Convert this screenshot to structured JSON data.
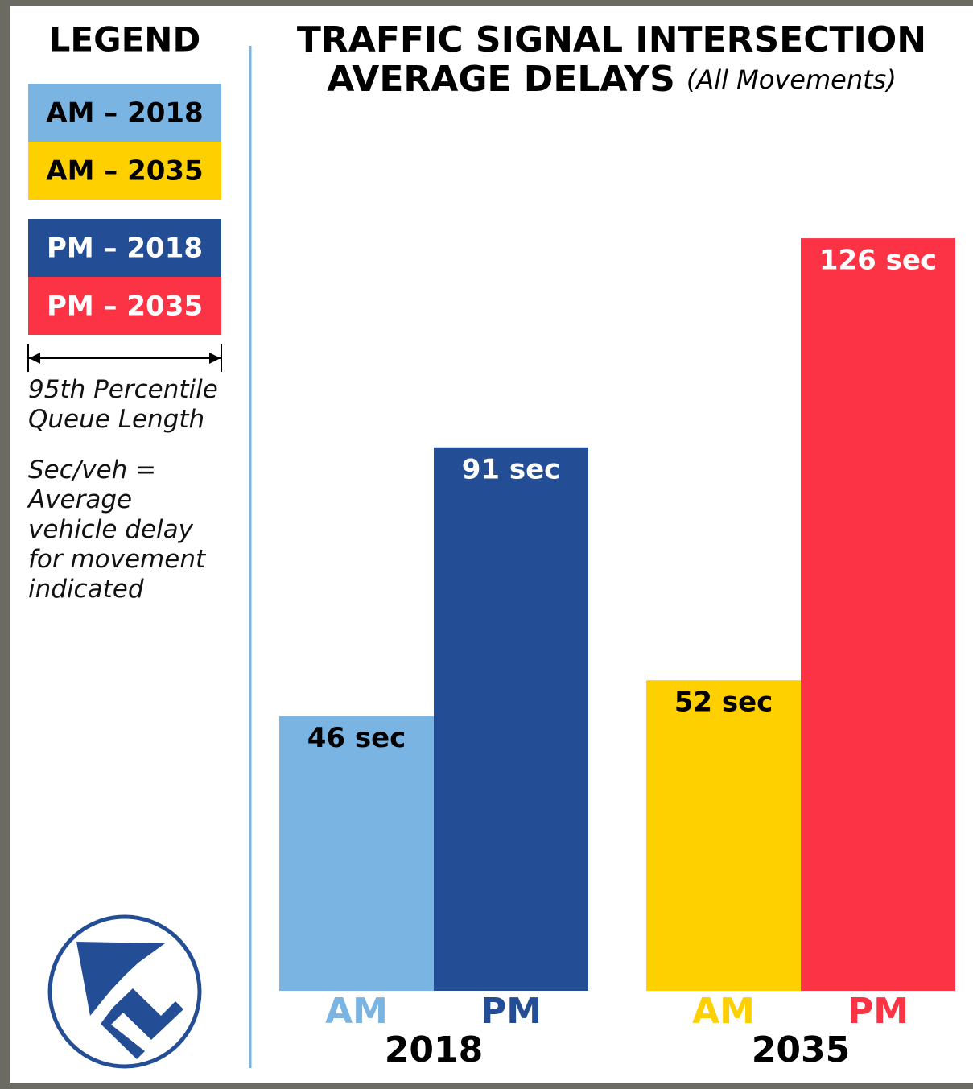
{
  "chart_data": {
    "type": "bar",
    "title": [
      "TRAFFIC SIGNAL INTERSECTION",
      "AVERAGE DELAYS"
    ],
    "subtitle": "(All Movements)",
    "legend_title": "LEGEND",
    "legend": [
      {
        "name": "AM – 2018",
        "color": "#7ab4e2",
        "text_color": "#000000"
      },
      {
        "name": "AM – 2035",
        "color": "#ffd000",
        "text_color": "#000000"
      },
      {
        "name": "PM – 2018",
        "color": "#234e96",
        "text_color": "#ffffff"
      },
      {
        "name": "PM – 2035",
        "color": "#fb3344",
        "text_color": "#ffffff"
      }
    ],
    "notes": [
      "95th Percentile Queue Length",
      "Sec/veh = Average vehicle delay for movement indicated"
    ],
    "categories": [
      "2018",
      "2035"
    ],
    "series": [
      {
        "name": "AM",
        "colors": [
          "#7ab4e2",
          "#ffd000"
        ],
        "label_color": "#000000",
        "values": [
          46,
          52
        ],
        "value_labels": [
          "46 sec",
          "52 sec"
        ]
      },
      {
        "name": "PM",
        "colors": [
          "#234e96",
          "#fb3344"
        ],
        "label_color": "#ffffff",
        "values": [
          91,
          126
        ],
        "value_labels": [
          "91 sec",
          "126 sec"
        ]
      }
    ]
  }
}
